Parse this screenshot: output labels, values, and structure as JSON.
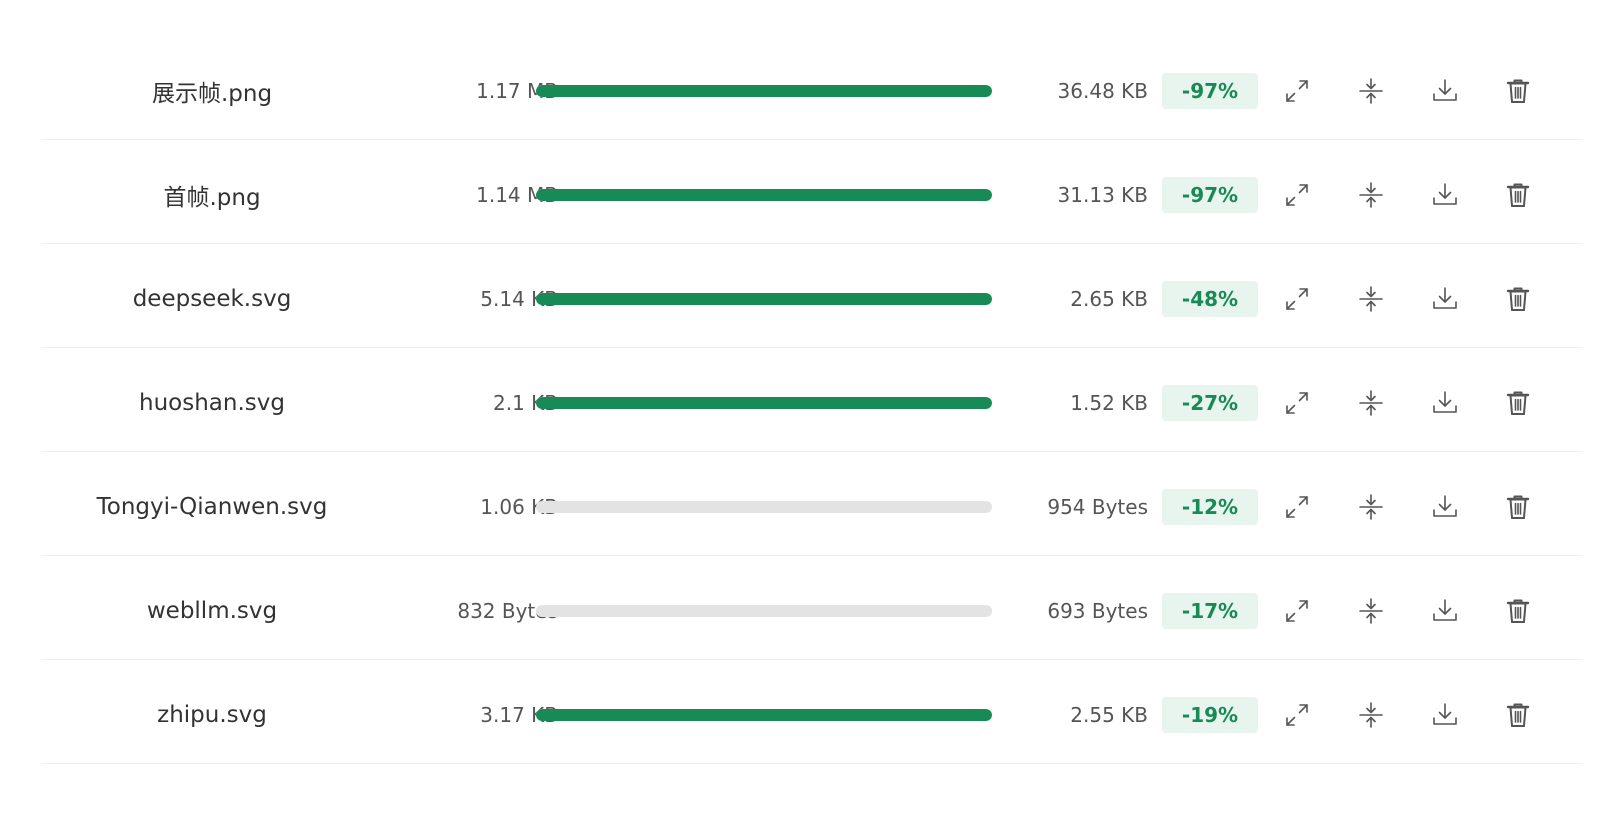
{
  "files": [
    {
      "name": "展示帧.png",
      "original_size": "1.17 MB",
      "compressed_size": "36.48 KB",
      "savings": "-97%",
      "progress": 1.0
    },
    {
      "name": "首帧.png",
      "original_size": "1.14 MB",
      "compressed_size": "31.13 KB",
      "savings": "-97%",
      "progress": 1.0
    },
    {
      "name": "deepseek.svg",
      "original_size": "5.14 KB",
      "compressed_size": "2.65 KB",
      "savings": "-48%",
      "progress": 1.0
    },
    {
      "name": "huoshan.svg",
      "original_size": "2.1 KB",
      "compressed_size": "1.52 KB",
      "savings": "-27%",
      "progress": 1.0
    },
    {
      "name": "Tongyi-Qianwen.svg",
      "original_size": "1.06 KB",
      "compressed_size": "954 Bytes",
      "savings": "-12%",
      "progress": 0.0
    },
    {
      "name": "webllm.svg",
      "original_size": "832 Bytes",
      "compressed_size": "693 Bytes",
      "savings": "-17%",
      "progress": 0.0
    },
    {
      "name": "zhipu.svg",
      "original_size": "3.17 KB",
      "compressed_size": "2.55 KB",
      "savings": "-19%",
      "progress": 1.0
    }
  ],
  "actions": [
    {
      "icon": "expand-icon",
      "label": "expand"
    },
    {
      "icon": "compress-icon",
      "label": "compress"
    },
    {
      "icon": "download-icon",
      "label": "download"
    },
    {
      "icon": "delete-icon",
      "label": "delete"
    }
  ],
  "colors": {
    "accent": "#178a55",
    "badge_background": "#e8f4ee",
    "track": "#e3e3e3"
  }
}
